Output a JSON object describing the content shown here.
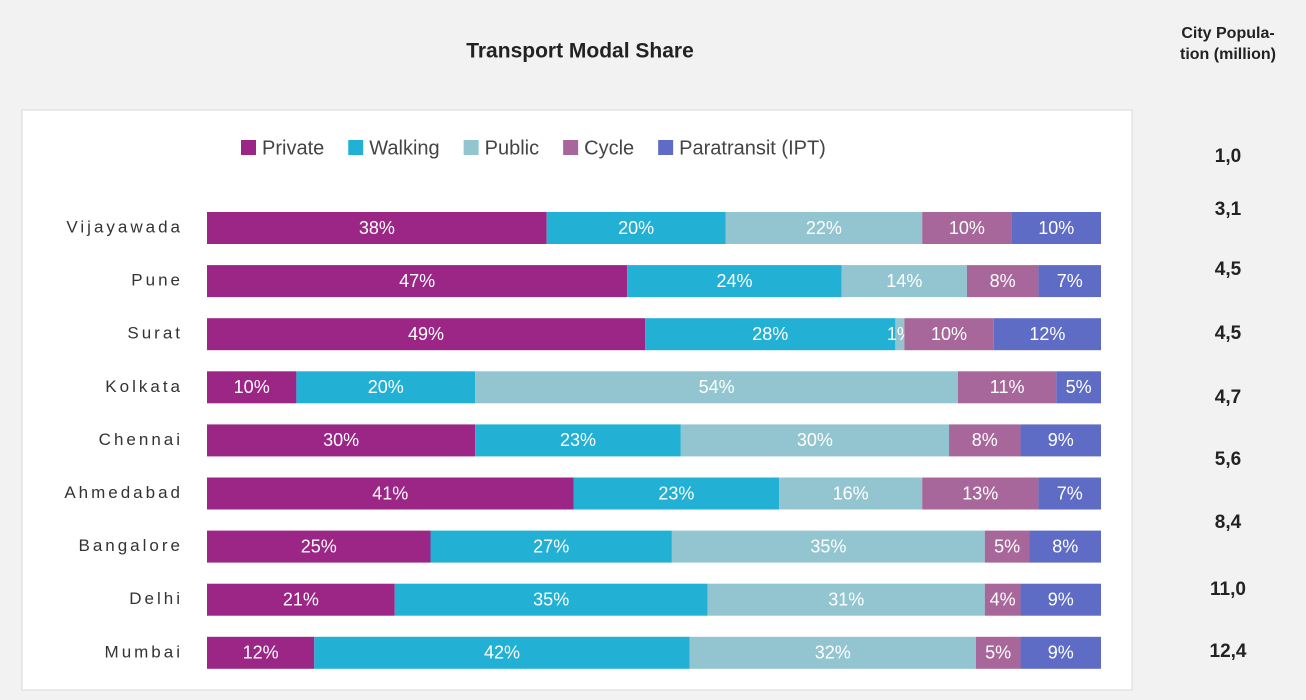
{
  "chart_data": {
    "type": "stacked_barh",
    "title": "Transport Modal Share",
    "categories": [
      "Vijayawada",
      "Pune",
      "Surat",
      "Kolkata",
      "Chennai",
      "Ahmedabad",
      "Bangalore",
      "Delhi",
      "Mumbai"
    ],
    "xlim": [
      0,
      100
    ],
    "legend": "top",
    "series": [
      {
        "name": "Private",
        "color": "#9b2685",
        "values": [
          38,
          47,
          49,
          10,
          30,
          41,
          25,
          21,
          12
        ],
        "value_labels": [
          "38%",
          "47%",
          "49%",
          "10%",
          "30%",
          "41%",
          "25%",
          "21%",
          "12%"
        ]
      },
      {
        "name": "Walking",
        "color": "#22b0d4",
        "values": [
          20,
          24,
          28,
          20,
          23,
          23,
          27,
          35,
          42
        ],
        "value_labels": [
          "20%",
          "24%",
          "28%",
          "20%",
          "23%",
          "23%",
          "27%",
          "35%",
          "42%"
        ]
      },
      {
        "name": "Public",
        "color": "#93c5d0",
        "values": [
          22,
          14,
          1,
          54,
          30,
          16,
          35,
          31,
          32
        ],
        "value_labels": [
          "22%",
          "14%",
          "1%",
          "54%",
          "30%",
          "16%",
          "35%",
          "31%",
          "32%"
        ]
      },
      {
        "name": "Cycle",
        "color": "#a8679a",
        "values": [
          10,
          8,
          10,
          11,
          8,
          13,
          5,
          4,
          5
        ],
        "value_labels": [
          "10%",
          "8%",
          "10%",
          "11%",
          "8%",
          "13%",
          "5%",
          "4%",
          "5%"
        ]
      },
      {
        "name": "Paratransit (IPT)",
        "color": "#5f6cc6",
        "values": [
          10,
          7,
          12,
          5,
          9,
          7,
          8,
          9,
          9
        ],
        "value_labels": [
          "10%",
          "7%",
          "12%",
          "5%",
          "9%",
          "7%",
          "8%",
          "9%",
          "9%"
        ]
      }
    ]
  },
  "population": {
    "header": [
      "City Popula-",
      "tion (million)"
    ],
    "values": [
      "1,0",
      "3,1",
      "4,5",
      "4,5",
      "4,7",
      "5,6",
      "8,4",
      "11,0",
      "12,4"
    ]
  }
}
